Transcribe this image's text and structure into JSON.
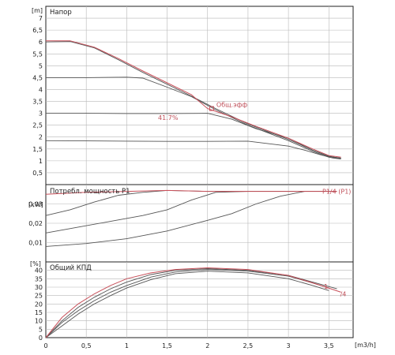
{
  "chart_data": {
    "type": "line",
    "x_axis": {
      "unit": "[m3/h]",
      "xlim": [
        0,
        3.8
      ],
      "ticks": [
        0,
        0.5,
        1,
        1.5,
        2,
        2.5,
        3,
        3.5
      ],
      "tick_labels": [
        "0",
        "0,5",
        "1",
        "1,5",
        "2",
        "2,5",
        "3",
        "3,5"
      ]
    },
    "panels": [
      {
        "id": "head",
        "title": "Напор",
        "unit": "[m]",
        "ylim": [
          0,
          7.5
        ],
        "ticks": [
          0,
          0.5,
          1,
          1.5,
          2,
          2.5,
          3,
          3.5,
          4,
          4.5,
          5,
          5.5,
          6,
          6.5,
          7
        ],
        "tick_labels": [
          "",
          "0,5",
          "1",
          "1,5",
          "2",
          "2,5",
          "3",
          "3,5",
          "4",
          "4,5",
          "5",
          "5,5",
          "6",
          "6,5",
          "7"
        ],
        "series": [
          {
            "color": "#555555",
            "points": [
              [
                0,
                1.85
              ],
              [
                0.5,
                1.84
              ],
              [
                1,
                1.83
              ],
              [
                1.5,
                1.82
              ],
              [
                2,
                1.82
              ],
              [
                2.5,
                1.83
              ],
              [
                3,
                1.62
              ],
              [
                3.2,
                1.45
              ],
              [
                3.4,
                1.25
              ],
              [
                3.55,
                1.12
              ],
              [
                3.65,
                1.08
              ]
            ]
          },
          {
            "color": "#555555",
            "points": [
              [
                0,
                3.0
              ],
              [
                0.5,
                3.0
              ],
              [
                1,
                2.99
              ],
              [
                1.5,
                2.99
              ],
              [
                2,
                3.0
              ],
              [
                2.3,
                2.75
              ],
              [
                2.6,
                2.35
              ],
              [
                3,
                1.95
              ],
              [
                3.3,
                1.45
              ],
              [
                3.5,
                1.2
              ],
              [
                3.65,
                1.1
              ]
            ]
          },
          {
            "color": "#555555",
            "points": [
              [
                0,
                4.5
              ],
              [
                0.5,
                4.5
              ],
              [
                1,
                4.52
              ],
              [
                1.2,
                4.48
              ],
              [
                1.5,
                4.1
              ],
              [
                1.8,
                3.7
              ],
              [
                2.1,
                3.15
              ],
              [
                2.5,
                2.5
              ],
              [
                3,
                1.85
              ],
              [
                3.3,
                1.4
              ],
              [
                3.5,
                1.15
              ],
              [
                3.65,
                1.1
              ]
            ]
          },
          {
            "color": "#555555",
            "points": [
              [
                0,
                6.0
              ],
              [
                0.3,
                6.02
              ],
              [
                0.6,
                5.75
              ],
              [
                0.9,
                5.25
              ],
              [
                1.2,
                4.72
              ],
              [
                1.5,
                4.22
              ],
              [
                1.8,
                3.72
              ],
              [
                2.1,
                3.2
              ],
              [
                2.5,
                2.55
              ],
              [
                3,
                1.9
              ],
              [
                3.3,
                1.45
              ],
              [
                3.5,
                1.18
              ],
              [
                3.65,
                1.12
              ]
            ]
          },
          {
            "color": "#c8505a",
            "points": [
              [
                0,
                6.05
              ],
              [
                0.3,
                6.05
              ],
              [
                0.6,
                5.78
              ],
              [
                0.9,
                5.3
              ],
              [
                1.2,
                4.78
              ],
              [
                1.5,
                4.28
              ],
              [
                1.8,
                3.78
              ],
              [
                2,
                3.2
              ],
              [
                2.3,
                2.85
              ],
              [
                2.6,
                2.45
              ],
              [
                3,
                1.95
              ],
              [
                3.3,
                1.5
              ],
              [
                3.5,
                1.22
              ],
              [
                3.65,
                1.15
              ]
            ]
          }
        ],
        "annotations": [
          {
            "text": "Общ.эфф",
            "x": 2.05,
            "y": 3.2
          },
          {
            "text": "41.7%",
            "x": 1.7,
            "y": 2.95
          }
        ]
      },
      {
        "id": "power",
        "title": "Потребл. мощность P1",
        "unit": "[kW]",
        "ylim": [
          0,
          0.04
        ],
        "ticks": [
          0,
          0.01,
          0.02,
          0.03
        ],
        "tick_labels": [
          "",
          "0,01",
          "0,02",
          "0,03"
        ],
        "series": [
          {
            "color": "#555555",
            "points": [
              [
                0,
                0.024
              ],
              [
                0.3,
                0.027
              ],
              [
                0.6,
                0.031
              ],
              [
                0.9,
                0.0345
              ],
              [
                1.2,
                0.036
              ],
              [
                1.5,
                0.037
              ],
              [
                2,
                0.0365
              ],
              [
                2.5,
                0.0365
              ],
              [
                3,
                0.0365
              ],
              [
                3.6,
                0.0365
              ]
            ]
          },
          {
            "color": "#555555",
            "points": [
              [
                0,
                0.015
              ],
              [
                0.4,
                0.018
              ],
              [
                0.8,
                0.021
              ],
              [
                1.2,
                0.024
              ],
              [
                1.5,
                0.027
              ],
              [
                1.8,
                0.032
              ],
              [
                2.1,
                0.036
              ],
              [
                2.5,
                0.0365
              ],
              [
                3,
                0.0365
              ],
              [
                3.6,
                0.0365
              ]
            ]
          },
          {
            "color": "#555555",
            "points": [
              [
                0,
                0.008
              ],
              [
                0.5,
                0.0095
              ],
              [
                1,
                0.012
              ],
              [
                1.5,
                0.016
              ],
              [
                2,
                0.0215
              ],
              [
                2.3,
                0.025
              ],
              [
                2.6,
                0.03
              ],
              [
                2.9,
                0.034
              ],
              [
                3.2,
                0.0365
              ],
              [
                3.6,
                0.0365
              ]
            ]
          },
          {
            "color": "#c8505a",
            "points": [
              [
                0,
                0.035
              ],
              [
                0.5,
                0.036
              ],
              [
                1,
                0.0365
              ],
              [
                1.5,
                0.037
              ],
              [
                2,
                0.0365
              ],
              [
                2.5,
                0.0365
              ],
              [
                3,
                0.0365
              ],
              [
                3.6,
                0.0365
              ]
            ]
          }
        ],
        "annotations": [
          {
            "text": "P1/4 (P1)",
            "x": 3.38,
            "y": 0.0365
          }
        ]
      },
      {
        "id": "eff",
        "title": "Общий КПД",
        "unit": "[%]",
        "ylim": [
          0,
          45
        ],
        "ticks": [
          0,
          5,
          10,
          15,
          20,
          25,
          30,
          35,
          40
        ],
        "tick_labels": [
          "0",
          "5",
          "10",
          "15",
          "20",
          "25",
          "30",
          "35",
          "40"
        ],
        "series": [
          {
            "color": "#555555",
            "points": [
              [
                0,
                0
              ],
              [
                0.2,
                7
              ],
              [
                0.4,
                14
              ],
              [
                0.6,
                20
              ],
              [
                0.8,
                25
              ],
              [
                1.0,
                29.5
              ],
              [
                1.3,
                34.5
              ],
              [
                1.6,
                38
              ],
              [
                2,
                39.5
              ],
              [
                2.5,
                38.5
              ],
              [
                3,
                35
              ],
              [
                3.3,
                31
              ],
              [
                3.5,
                28
              ]
            ]
          },
          {
            "color": "#555555",
            "points": [
              [
                0,
                0
              ],
              [
                0.2,
                9
              ],
              [
                0.4,
                16
              ],
              [
                0.6,
                22
              ],
              [
                0.8,
                27
              ],
              [
                1.0,
                31
              ],
              [
                1.3,
                36
              ],
              [
                1.6,
                39
              ],
              [
                2,
                40.5
              ],
              [
                2.5,
                39.5
              ],
              [
                3,
                36.5
              ],
              [
                3.3,
                32.5
              ],
              [
                3.5,
                29.5
              ]
            ]
          },
          {
            "color": "#555555",
            "points": [
              [
                0,
                0
              ],
              [
                0.2,
                10
              ],
              [
                0.4,
                18
              ],
              [
                0.6,
                24
              ],
              [
                0.8,
                29
              ],
              [
                1.0,
                33
              ],
              [
                1.3,
                37.5
              ],
              [
                1.6,
                40
              ],
              [
                2,
                41
              ],
              [
                2.5,
                40
              ],
              [
                3,
                37
              ],
              [
                3.3,
                33
              ],
              [
                3.6,
                29
              ]
            ]
          },
          {
            "color": "#c8505a",
            "points": [
              [
                0,
                0
              ],
              [
                0.2,
                12
              ],
              [
                0.4,
                20
              ],
              [
                0.6,
                26
              ],
              [
                0.8,
                31
              ],
              [
                1.0,
                35
              ],
              [
                1.3,
                38.5
              ],
              [
                1.6,
                40.5
              ],
              [
                2,
                41.5
              ],
              [
                2.5,
                40.5
              ],
              [
                3,
                37
              ],
              [
                3.4,
                31
              ],
              [
                3.65,
                27
              ]
            ]
          }
        ],
        "annotations": [
          {
            "text": "1",
            "x": 3.42,
            "y": 31
          },
          {
            "text": "/4",
            "x": 3.62,
            "y": 26.5
          }
        ]
      }
    ]
  }
}
